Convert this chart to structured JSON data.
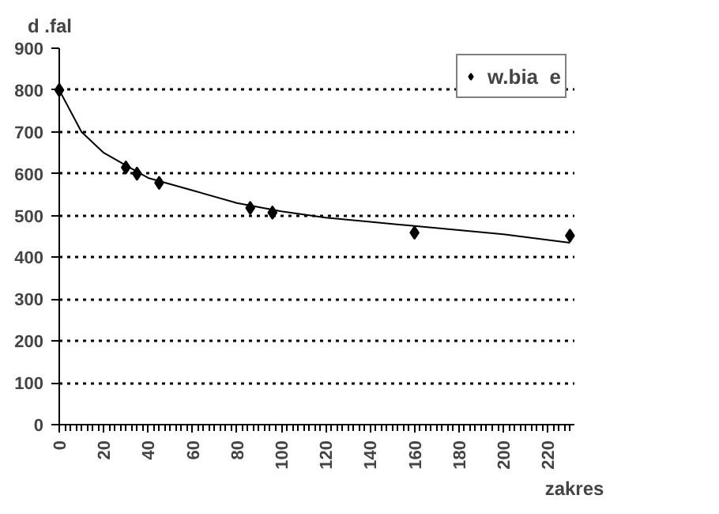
{
  "chart_data": {
    "type": "scatter",
    "ylabel": "d  .fal",
    "xlabel": "zakres",
    "xlim": [
      0,
      232
    ],
    "xticks": [
      0,
      20,
      40,
      60,
      80,
      100,
      120,
      140,
      160,
      180,
      200,
      220
    ],
    "ylim": [
      0,
      900
    ],
    "yticks": [
      0,
      100,
      200,
      300,
      400,
      500,
      600,
      700,
      800,
      900
    ],
    "grid": "y",
    "legend": "top right",
    "series": [
      {
        "name": "w.bia  e",
        "color": "#000000",
        "marker": "diamond",
        "x": [
          0,
          30,
          35,
          45,
          86,
          96,
          160,
          230
        ],
        "values": [
          800,
          615,
          600,
          578,
          518,
          507,
          459,
          452
        ]
      },
      {
        "type": "line",
        "color": "#000000",
        "x": [
          0,
          5,
          10,
          20,
          30,
          40,
          60,
          80,
          100,
          120,
          140,
          160,
          180,
          200,
          230
        ],
        "values": [
          800,
          750,
          700,
          650,
          620,
          590,
          560,
          530,
          510,
          495,
          485,
          475,
          465,
          455,
          435
        ]
      }
    ]
  }
}
